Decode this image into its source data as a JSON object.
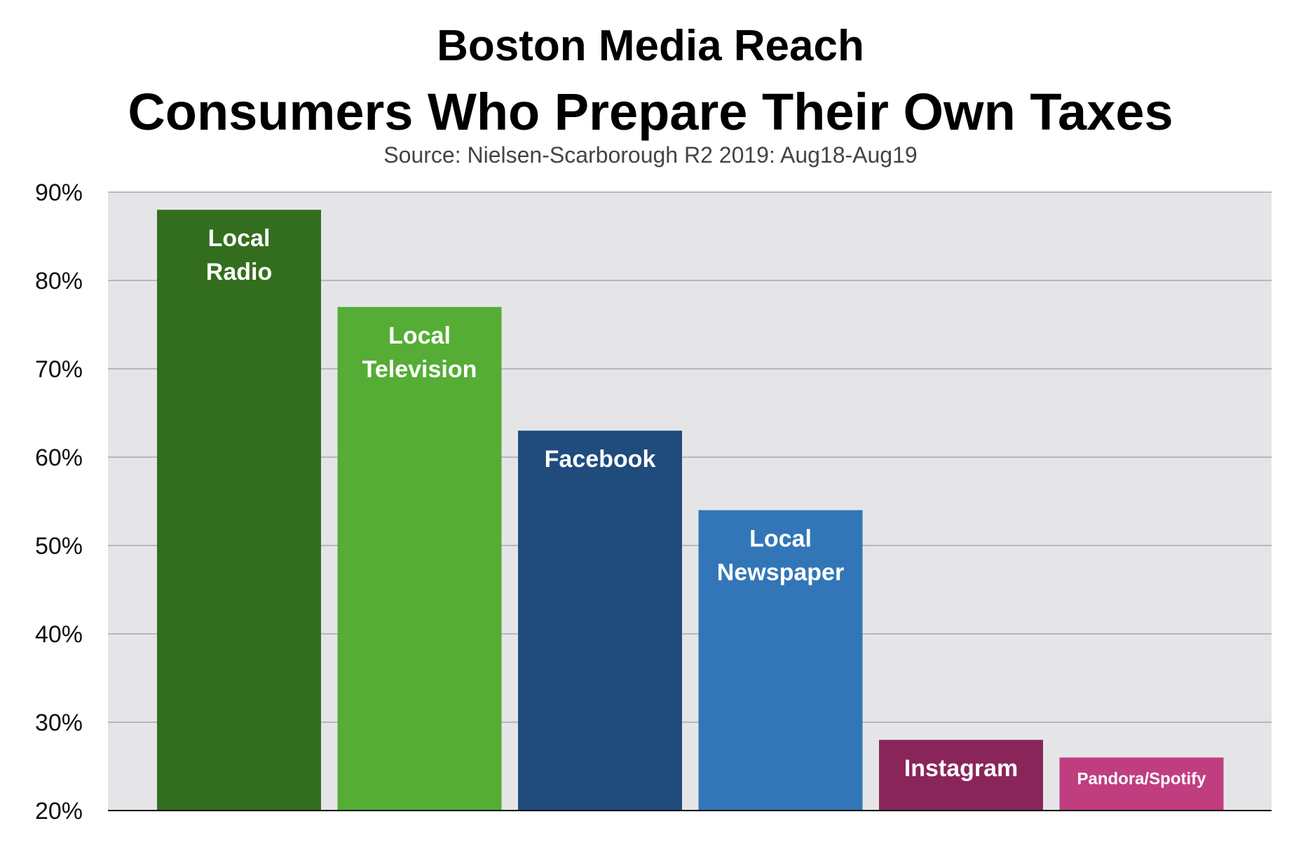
{
  "chart_data": {
    "type": "bar",
    "title": "Boston Media Reach",
    "subtitle": "Consumers Who Prepare Their Own Taxes",
    "source": "Source: Nielsen-Scarborough R2 2019: Aug18-Aug19",
    "categories": [
      "Local Radio",
      "Local Television",
      "Facebook",
      "Local Newspaper",
      "Instagram",
      "Pandora/Spotify"
    ],
    "label_lines": [
      [
        "Local",
        "Radio"
      ],
      [
        "Local",
        "Television"
      ],
      [
        "Facebook"
      ],
      [
        "Local",
        "Newspaper"
      ],
      [
        "Instagram"
      ],
      [
        "Pandora/Spotify"
      ]
    ],
    "values": [
      88,
      77,
      63,
      54,
      28,
      26
    ],
    "colors": [
      "#336e1f",
      "#55ad35",
      "#1f4c7d",
      "#3276b8",
      "#8a2559",
      "#c03d80"
    ],
    "ylim": [
      20,
      90
    ],
    "yticks": [
      20,
      30,
      40,
      50,
      60,
      70,
      80,
      90
    ],
    "ytick_labels": [
      "20%",
      "30%",
      "40%",
      "50%",
      "60%",
      "70%",
      "80%",
      "90%"
    ],
    "xlabel": "",
    "ylabel": "",
    "grid": true,
    "legend": "none"
  }
}
